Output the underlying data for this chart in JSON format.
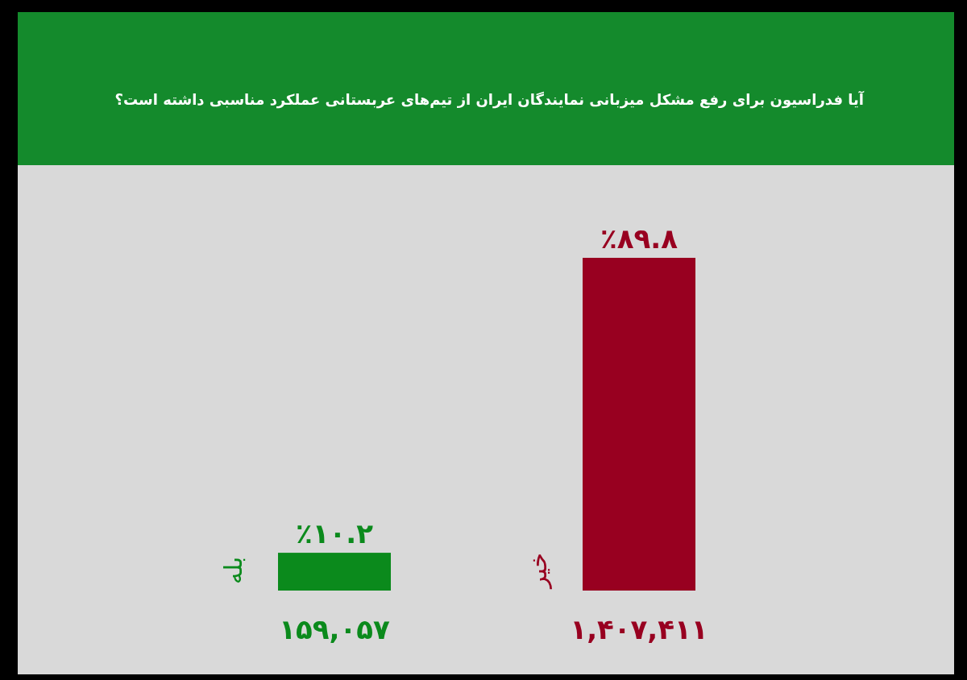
{
  "chart_data": {
    "type": "bar",
    "title": "آیا فدراسیون برای رفع مشکل میزبانی نمایندگان ایران از تیم‌های عربستانی عملکرد مناسبی داشته است؟",
    "categories": [
      "بله",
      "خیر"
    ],
    "values": [
      10.2,
      89.8
    ],
    "colors": [
      "#0b8a1c",
      "#980020"
    ],
    "value_labels": [
      "٪۱۰.۲",
      "٪۸۹.۸"
    ],
    "annotations": [
      "۱۵۹,۰۵۷",
      "۱,۴۰۷,۴۱۱"
    ]
  }
}
